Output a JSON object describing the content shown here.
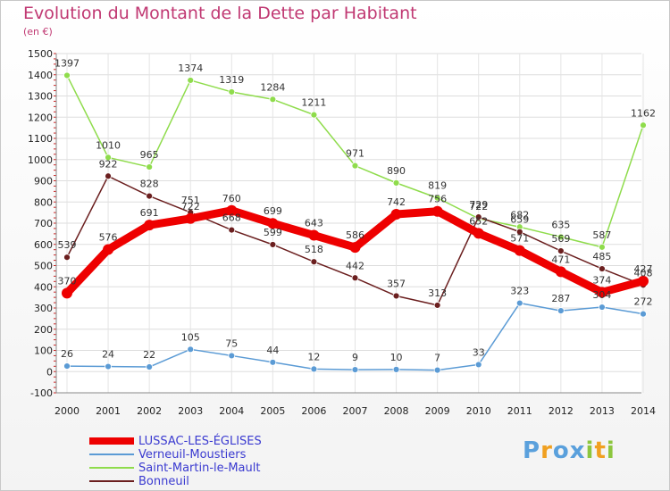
{
  "title": "Evolution du Montant de la Dette par Habitant",
  "subtitle": "(en €)",
  "logo": "Proxiti",
  "chart_data": {
    "type": "line",
    "x": [
      "2000",
      "2001",
      "2002",
      "2003",
      "2004",
      "2005",
      "2006",
      "2007",
      "2008",
      "2009",
      "2010",
      "2011",
      "2012",
      "2013",
      "2014"
    ],
    "y_ticks": [
      -100,
      0,
      100,
      200,
      300,
      400,
      500,
      600,
      700,
      800,
      900,
      1000,
      1100,
      1200,
      1300,
      1400,
      1500
    ],
    "ylim": [
      -100,
      1500
    ],
    "grid": true,
    "legend_position": "bottom-left",
    "series": [
      {
        "name": "LUSSAC-LES-ÉGLISES",
        "color": "#ee0000",
        "values": [
          370,
          576,
          691,
          722,
          760,
          699,
          643,
          586,
          742,
          756,
          652,
          571,
          471,
          374,
          427
        ]
      },
      {
        "name": "Verneuil-Moustiers",
        "color": "#5b9bd5",
        "values": [
          26,
          24,
          22,
          105,
          75,
          44,
          12,
          9,
          10,
          7,
          33,
          323,
          287,
          304,
          272
        ]
      },
      {
        "name": "Saint-Martin-le-Mault",
        "color": "#8fdc4c",
        "values": [
          1397,
          1010,
          965,
          1374,
          1319,
          1284,
          1211,
          971,
          890,
          819,
          722,
          682,
          635,
          587,
          1162
        ]
      },
      {
        "name": "Bonneuil",
        "color": "#6b1f1f",
        "values": [
          539,
          922,
          828,
          751,
          668,
          599,
          518,
          442,
          357,
          313,
          729,
          659,
          569,
          485,
          408
        ]
      }
    ]
  }
}
